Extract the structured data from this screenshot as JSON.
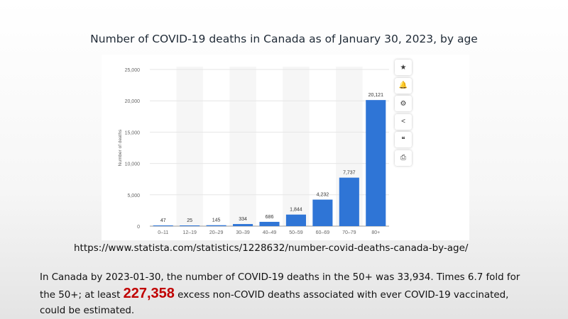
{
  "chart_data": {
    "type": "bar",
    "title": "Number of COVID-19 deaths in Canada as of January 30, 2023, by age",
    "ylabel": "Number of deaths",
    "xlabel": "",
    "categories": [
      "0–11",
      "12–19",
      "20–29",
      "30–39",
      "40–49",
      "50–59",
      "60–69",
      "70–79",
      "80+"
    ],
    "values": [
      47,
      25,
      145,
      334,
      686,
      1844,
      4232,
      7737,
      20121
    ],
    "value_labels": [
      "47",
      "25",
      "145",
      "334",
      "686",
      "1,844",
      "4,232",
      "7,737",
      "20,121"
    ],
    "ylim": [
      0,
      25000
    ],
    "yticks": [
      0,
      5000,
      10000,
      15000,
      20000,
      25000
    ],
    "ytick_labels": [
      "0",
      "5,000",
      "10,000",
      "15,000",
      "20,000",
      "25,000"
    ],
    "bar_color": "#2f75d6",
    "grid": true,
    "legend": "none"
  },
  "toolbar": {
    "items": [
      {
        "icon": "star-icon",
        "glyph": "★"
      },
      {
        "icon": "bell-icon",
        "glyph": "🔔"
      },
      {
        "icon": "gear-icon",
        "glyph": "⚙"
      },
      {
        "icon": "share-icon",
        "glyph": "<"
      },
      {
        "icon": "quote-icon",
        "glyph": "❝"
      },
      {
        "icon": "print-icon",
        "glyph": "⎙"
      }
    ]
  },
  "source_url": "https://www.statista.com/statistics/1228632/number-covid-deaths-canada-by-age/",
  "note": {
    "part1": "In Canada by 2023-01-30, the number of COVID-19 deaths in the 50+ was 33,934. Times 6.7 fold for the 50+;  at least ",
    "highlight": "227,358",
    "part2": " excess non-COVID deaths associated with ever COVID-19 vaccinated, could be estimated."
  }
}
